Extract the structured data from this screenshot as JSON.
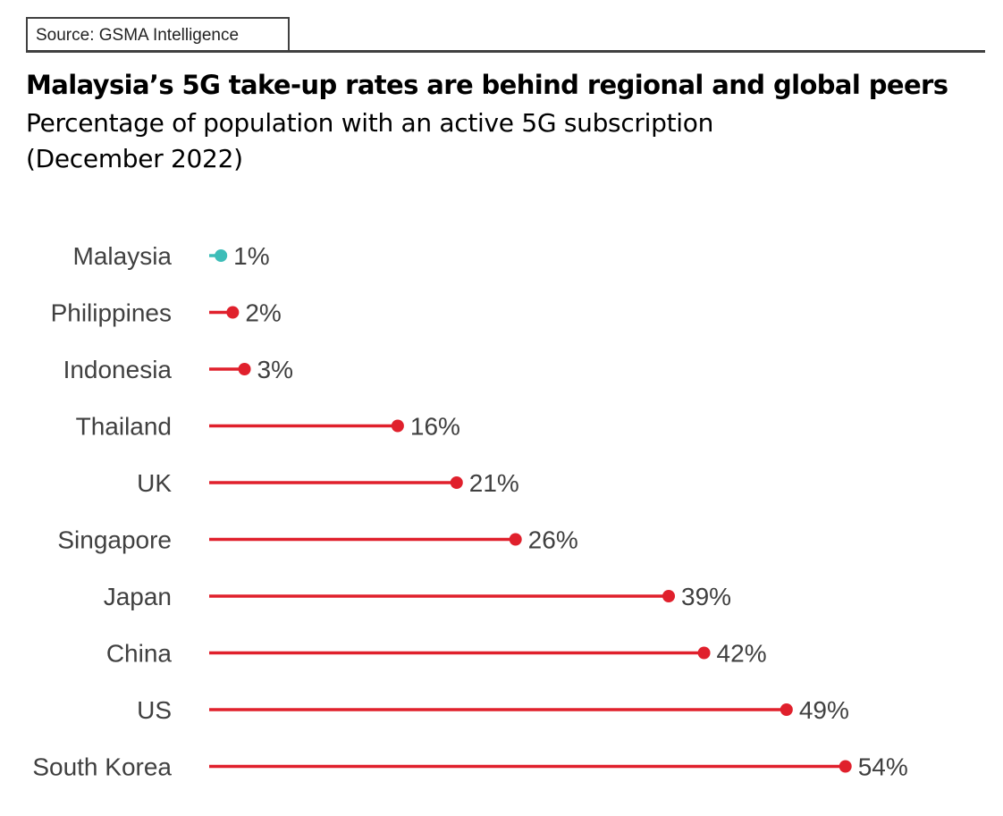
{
  "source": "Source: GSMA Intelligence",
  "title": "Malaysia’s 5G take-up rates are behind regional and global peers",
  "subtitle_line1": "Percentage of population with an active 5G subscription",
  "subtitle_line2": "(December 2022)",
  "chart_data": {
    "type": "lollipop",
    "orientation": "horizontal",
    "title": "Malaysia’s 5G take-up rates are behind regional and global peers",
    "subtitle": "Percentage of population with an active 5G subscription (December 2022)",
    "categories": [
      "Malaysia",
      "Philippines",
      "Indonesia",
      "Thailand",
      "UK",
      "Singapore",
      "Japan",
      "China",
      "US",
      "South Korea"
    ],
    "values": [
      1,
      2,
      3,
      16,
      21,
      26,
      39,
      42,
      49,
      54
    ],
    "labels": [
      "1%",
      "2%",
      "3%",
      "16%",
      "21%",
      "26%",
      "39%",
      "42%",
      "49%",
      "54%"
    ],
    "unit": "%",
    "xlim": [
      0,
      54
    ],
    "grid": false,
    "highlight": "Malaysia",
    "colors": {
      "highlight": "#3dbdb8",
      "default": "#e0202c"
    }
  }
}
